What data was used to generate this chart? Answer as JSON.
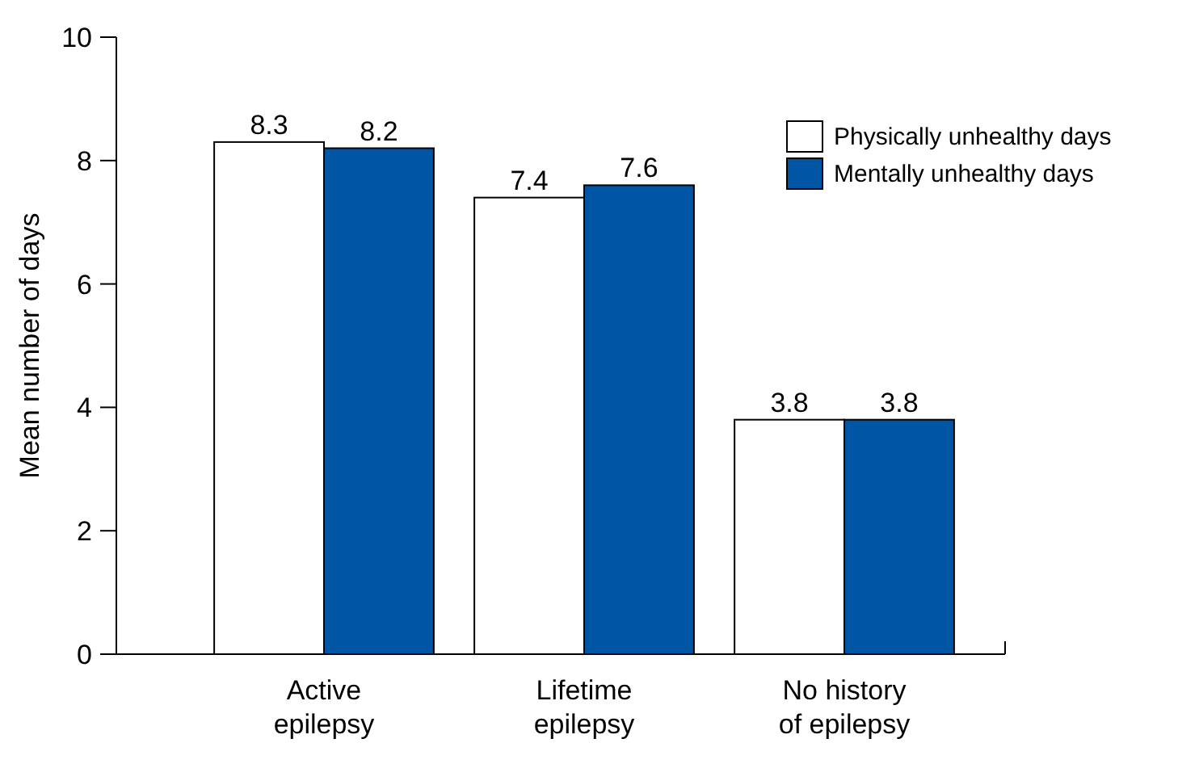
{
  "chart_data": {
    "type": "bar",
    "ylabel": "Mean number of days",
    "categories": [
      "Active epilepsy",
      "Lifetime epilepsy",
      "No history of epilepsy"
    ],
    "series": [
      {
        "name": "Physically unhealthy days",
        "color": "#ffffff",
        "values": [
          8.3,
          7.4,
          3.8
        ]
      },
      {
        "name": "Mentally unhealthy days",
        "color": "#0055a4",
        "values": [
          8.2,
          7.6,
          3.8
        ]
      }
    ],
    "ylim": [
      0,
      10
    ],
    "yticks": [
      0,
      2,
      4,
      6,
      8,
      10
    ],
    "data_labels": true,
    "legend": "top right",
    "grid": false
  }
}
